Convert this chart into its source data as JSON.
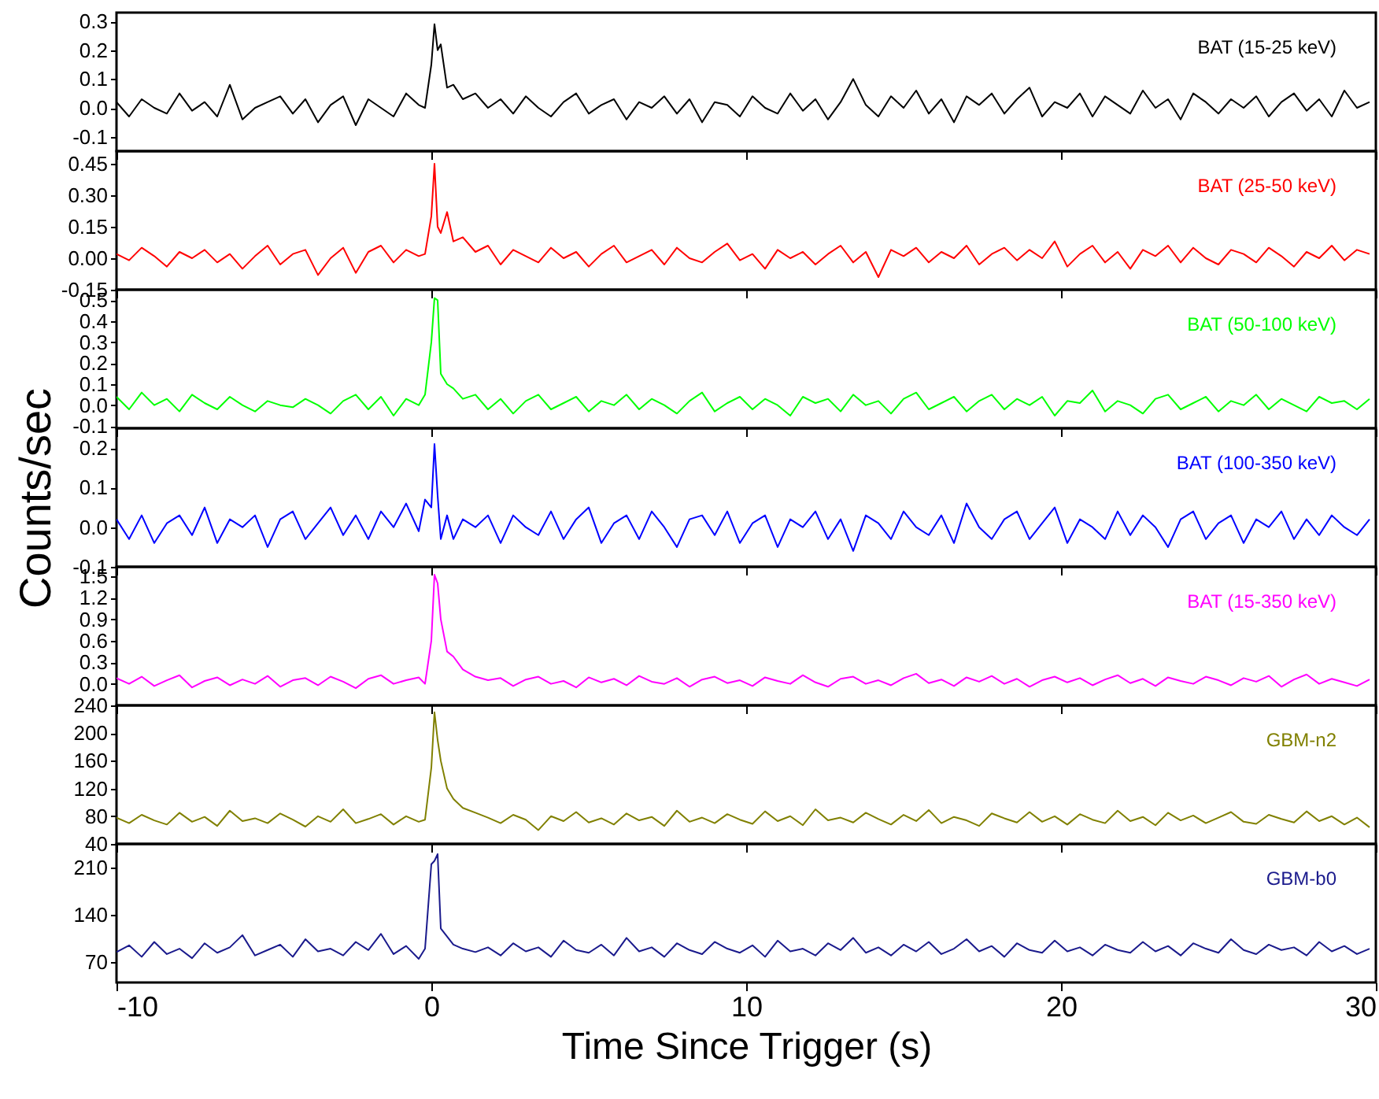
{
  "chart_data": [
    {
      "type": "line",
      "x": [
        -10,
        -9.6,
        -9.2,
        -8.8,
        -8.4,
        -8,
        -7.6,
        -7.2,
        -6.8,
        -6.4,
        -6,
        -5.6,
        -5.2,
        -4.8,
        -4.4,
        -4,
        -3.6,
        -3.2,
        -2.8,
        -2.4,
        -2,
        -1.6,
        -1.2,
        -0.8,
        -0.4,
        -0.2,
        0,
        0.1,
        0.2,
        0.3,
        0.5,
        0.7,
        1,
        1.4,
        1.8,
        2.2,
        2.6,
        3,
        3.4,
        3.8,
        4.2,
        4.6,
        5,
        5.4,
        5.8,
        6.2,
        6.6,
        7,
        7.4,
        7.8,
        8.2,
        8.6,
        9,
        9.4,
        9.8,
        10.2,
        10.6,
        11,
        11.4,
        11.8,
        12.2,
        12.6,
        13,
        13.4,
        13.8,
        14.2,
        14.6,
        15,
        15.4,
        15.8,
        16.2,
        16.6,
        17,
        17.4,
        17.8,
        18.2,
        18.6,
        19,
        19.4,
        19.8,
        20.2,
        20.6,
        21,
        21.4,
        21.8,
        22.2,
        22.6,
        23,
        23.4,
        23.8,
        24.2,
        24.6,
        25,
        25.4,
        25.8,
        26.2,
        26.6,
        27,
        27.4,
        27.8,
        28.2,
        28.6,
        29,
        29.4,
        29.8
      ],
      "series": [
        {
          "name": "BAT (15-25 keV)",
          "color": "#000000",
          "values": [
            0.02,
            -0.03,
            0.03,
            0.0,
            -0.02,
            0.05,
            -0.01,
            0.02,
            -0.03,
            0.08,
            -0.04,
            0.0,
            0.02,
            0.04,
            -0.02,
            0.03,
            -0.05,
            0.01,
            0.04,
            -0.06,
            0.03,
            0.0,
            -0.03,
            0.05,
            0.01,
            0.0,
            0.15,
            0.29,
            0.2,
            0.22,
            0.07,
            0.08,
            0.03,
            0.05,
            0.0,
            0.03,
            -0.02,
            0.04,
            0.0,
            -0.03,
            0.02,
            0.05,
            -0.02,
            0.01,
            0.03,
            -0.04,
            0.02,
            0.0,
            0.04,
            -0.02,
            0.03,
            -0.05,
            0.02,
            0.01,
            -0.03,
            0.04,
            0.0,
            -0.02,
            0.05,
            -0.01,
            0.03,
            -0.04,
            0.02,
            0.1,
            0.01,
            -0.03,
            0.04,
            0.0,
            0.06,
            -0.02,
            0.03,
            -0.05,
            0.04,
            0.01,
            0.05,
            -0.02,
            0.03,
            0.07,
            -0.03,
            0.02,
            0.0,
            0.05,
            -0.03,
            0.04,
            0.01,
            -0.02,
            0.06,
            0.0,
            0.03,
            -0.04,
            0.05,
            0.02,
            -0.02,
            0.03,
            0.0,
            0.04,
            -0.03,
            0.02,
            0.05,
            -0.01,
            0.03,
            -0.03,
            0.06,
            0.0,
            0.02
          ]
        }
      ],
      "xlim": [
        -10,
        30
      ],
      "xticks": [
        -10,
        0,
        10,
        20,
        30
      ],
      "ylim": [
        -0.15,
        0.33
      ],
      "yticks": [
        -0.1,
        {
          "value": 0,
          "label": "0.0"
        },
        0.1,
        0.2,
        0.3
      ],
      "tick_labels": "y"
    },
    {
      "type": "line",
      "x": [
        -10,
        -9.6,
        -9.2,
        -8.8,
        -8.4,
        -8,
        -7.6,
        -7.2,
        -6.8,
        -6.4,
        -6,
        -5.6,
        -5.2,
        -4.8,
        -4.4,
        -4,
        -3.6,
        -3.2,
        -2.8,
        -2.4,
        -2,
        -1.6,
        -1.2,
        -0.8,
        -0.4,
        -0.2,
        0,
        0.1,
        0.2,
        0.3,
        0.5,
        0.7,
        1,
        1.4,
        1.8,
        2.2,
        2.6,
        3,
        3.4,
        3.8,
        4.2,
        4.6,
        5,
        5.4,
        5.8,
        6.2,
        6.6,
        7,
        7.4,
        7.8,
        8.2,
        8.6,
        9,
        9.4,
        9.8,
        10.2,
        10.6,
        11,
        11.4,
        11.8,
        12.2,
        12.6,
        13,
        13.4,
        13.8,
        14.2,
        14.6,
        15,
        15.4,
        15.8,
        16.2,
        16.6,
        17,
        17.4,
        17.8,
        18.2,
        18.6,
        19,
        19.4,
        19.8,
        20.2,
        20.6,
        21,
        21.4,
        21.8,
        22.2,
        22.6,
        23,
        23.4,
        23.8,
        24.2,
        24.6,
        25,
        25.4,
        25.8,
        26.2,
        26.6,
        27,
        27.4,
        27.8,
        28.2,
        28.6,
        29,
        29.4,
        29.8
      ],
      "series": [
        {
          "name": "BAT (25-50 keV)",
          "color": "#ff0000",
          "values": [
            0.02,
            -0.01,
            0.05,
            0.01,
            -0.04,
            0.03,
            0.0,
            0.04,
            -0.02,
            0.02,
            -0.05,
            0.01,
            0.06,
            -0.03,
            0.02,
            0.04,
            -0.08,
            0.0,
            0.05,
            -0.07,
            0.03,
            0.06,
            -0.02,
            0.04,
            0.01,
            0.02,
            0.2,
            0.45,
            0.15,
            0.12,
            0.22,
            0.08,
            0.1,
            0.03,
            0.06,
            -0.03,
            0.04,
            0.01,
            -0.02,
            0.05,
            0.0,
            0.03,
            -0.04,
            0.02,
            0.06,
            -0.02,
            0.01,
            0.04,
            -0.03,
            0.05,
            0.0,
            -0.02,
            0.03,
            0.07,
            -0.01,
            0.02,
            -0.05,
            0.04,
            0.0,
            0.03,
            -0.03,
            0.02,
            0.06,
            -0.02,
            0.03,
            -0.09,
            0.04,
            0.01,
            0.05,
            -0.02,
            0.03,
            0.0,
            0.06,
            -0.03,
            0.02,
            0.05,
            -0.01,
            0.04,
            0.0,
            0.08,
            -0.04,
            0.02,
            0.06,
            -0.02,
            0.03,
            -0.05,
            0.04,
            0.01,
            0.06,
            -0.02,
            0.05,
            0.0,
            -0.03,
            0.04,
            0.02,
            -0.02,
            0.05,
            0.01,
            -0.04,
            0.03,
            0.0,
            0.06,
            -0.01,
            0.04,
            0.02
          ]
        }
      ],
      "xlim": [
        -10,
        30
      ],
      "xticks": [
        -10,
        0,
        10,
        20,
        30
      ],
      "ylim": [
        -0.15,
        0.51
      ],
      "yticks": [
        {
          "value": -0.15,
          "label": "-0.15"
        },
        {
          "value": 0,
          "label": "0.00"
        },
        0.15,
        {
          "value": 0.3,
          "label": "0.30"
        },
        0.45
      ],
      "tick_labels": "y"
    },
    {
      "type": "line",
      "x": [
        -10,
        -9.6,
        -9.2,
        -8.8,
        -8.4,
        -8,
        -7.6,
        -7.2,
        -6.8,
        -6.4,
        -6,
        -5.6,
        -5.2,
        -4.8,
        -4.4,
        -4,
        -3.6,
        -3.2,
        -2.8,
        -2.4,
        -2,
        -1.6,
        -1.2,
        -0.8,
        -0.4,
        -0.2,
        0,
        0.1,
        0.2,
        0.3,
        0.5,
        0.7,
        1,
        1.4,
        1.8,
        2.2,
        2.6,
        3,
        3.4,
        3.8,
        4.2,
        4.6,
        5,
        5.4,
        5.8,
        6.2,
        6.6,
        7,
        7.4,
        7.8,
        8.2,
        8.6,
        9,
        9.4,
        9.8,
        10.2,
        10.6,
        11,
        11.4,
        11.8,
        12.2,
        12.6,
        13,
        13.4,
        13.8,
        14.2,
        14.6,
        15,
        15.4,
        15.8,
        16.2,
        16.6,
        17,
        17.4,
        17.8,
        18.2,
        18.6,
        19,
        19.4,
        19.8,
        20.2,
        20.6,
        21,
        21.4,
        21.8,
        22.2,
        22.6,
        23,
        23.4,
        23.8,
        24.2,
        24.6,
        25,
        25.4,
        25.8,
        26.2,
        26.6,
        27,
        27.4,
        27.8,
        28.2,
        28.6,
        29,
        29.4,
        29.8
      ],
      "series": [
        {
          "name": "BAT (50-100 keV)",
          "color": "#00ff00",
          "values": [
            0.04,
            -0.02,
            0.06,
            0.0,
            0.03,
            -0.03,
            0.05,
            0.01,
            -0.02,
            0.04,
            0.0,
            -0.03,
            0.02,
            0.0,
            -0.01,
            0.03,
            0.0,
            -0.04,
            0.02,
            0.05,
            -0.02,
            0.04,
            -0.05,
            0.03,
            0.0,
            0.05,
            0.3,
            0.51,
            0.5,
            0.15,
            0.1,
            0.08,
            0.03,
            0.05,
            -0.02,
            0.03,
            -0.04,
            0.02,
            0.05,
            -0.02,
            0.01,
            0.04,
            -0.03,
            0.02,
            0.0,
            0.05,
            -0.02,
            0.03,
            0.0,
            -0.04,
            0.02,
            0.06,
            -0.03,
            0.01,
            0.04,
            -0.02,
            0.03,
            0.0,
            -0.05,
            0.04,
            0.01,
            0.03,
            -0.03,
            0.05,
            0.0,
            0.02,
            -0.04,
            0.03,
            0.06,
            -0.02,
            0.01,
            0.04,
            -0.03,
            0.02,
            0.05,
            -0.02,
            0.03,
            0.0,
            0.04,
            -0.05,
            0.02,
            0.01,
            0.07,
            -0.03,
            0.02,
            0.0,
            -0.04,
            0.03,
            0.05,
            -0.02,
            0.01,
            0.04,
            -0.03,
            0.02,
            0.0,
            0.05,
            -0.02,
            0.03,
            0.0,
            -0.03,
            0.04,
            0.01,
            0.02,
            -0.02,
            0.03
          ]
        }
      ],
      "xlim": [
        -10,
        30
      ],
      "xticks": [
        -10,
        0,
        10,
        20,
        30
      ],
      "ylim": [
        -0.11,
        0.55
      ],
      "yticks": [
        -0.1,
        {
          "value": 0,
          "label": "0.0"
        },
        0.1,
        0.2,
        0.3,
        0.4,
        0.5
      ],
      "tick_labels": "y"
    },
    {
      "type": "line",
      "ylabel": "Counts/sec",
      "x": [
        -10,
        -9.6,
        -9.2,
        -8.8,
        -8.4,
        -8,
        -7.6,
        -7.2,
        -6.8,
        -6.4,
        -6,
        -5.6,
        -5.2,
        -4.8,
        -4.4,
        -4,
        -3.6,
        -3.2,
        -2.8,
        -2.4,
        -2,
        -1.6,
        -1.2,
        -0.8,
        -0.4,
        -0.2,
        0,
        0.1,
        0.2,
        0.3,
        0.5,
        0.7,
        1,
        1.4,
        1.8,
        2.2,
        2.6,
        3,
        3.4,
        3.8,
        4.2,
        4.6,
        5,
        5.4,
        5.8,
        6.2,
        6.6,
        7,
        7.4,
        7.8,
        8.2,
        8.6,
        9,
        9.4,
        9.8,
        10.2,
        10.6,
        11,
        11.4,
        11.8,
        12.2,
        12.6,
        13,
        13.4,
        13.8,
        14.2,
        14.6,
        15,
        15.4,
        15.8,
        16.2,
        16.6,
        17,
        17.4,
        17.8,
        18.2,
        18.6,
        19,
        19.4,
        19.8,
        20.2,
        20.6,
        21,
        21.4,
        21.8,
        22.2,
        22.6,
        23,
        23.4,
        23.8,
        24.2,
        24.6,
        25,
        25.4,
        25.8,
        26.2,
        26.6,
        27,
        27.4,
        27.8,
        28.2,
        28.6,
        29,
        29.4,
        29.8
      ],
      "series": [
        {
          "name": "BAT (100-350 keV)",
          "color": "#0000ff",
          "values": [
            0.02,
            -0.03,
            0.03,
            -0.04,
            0.01,
            0.03,
            -0.02,
            0.05,
            -0.04,
            0.02,
            0.0,
            0.03,
            -0.05,
            0.02,
            0.04,
            -0.03,
            0.01,
            0.05,
            -0.02,
            0.03,
            -0.03,
            0.04,
            0.0,
            0.06,
            -0.01,
            0.07,
            0.05,
            0.21,
            0.08,
            -0.03,
            0.03,
            -0.03,
            0.02,
            0.0,
            0.03,
            -0.04,
            0.03,
            0.0,
            -0.02,
            0.04,
            -0.03,
            0.02,
            0.05,
            -0.04,
            0.01,
            0.03,
            -0.03,
            0.04,
            0.0,
            -0.05,
            0.02,
            0.03,
            -0.02,
            0.04,
            -0.04,
            0.01,
            0.03,
            -0.05,
            0.02,
            0.0,
            0.04,
            -0.03,
            0.02,
            -0.06,
            0.03,
            0.01,
            -0.03,
            0.04,
            0.0,
            -0.02,
            0.03,
            -0.04,
            0.06,
            0.0,
            -0.03,
            0.02,
            0.04,
            -0.03,
            0.01,
            0.05,
            -0.04,
            0.02,
            0.0,
            -0.03,
            0.04,
            -0.02,
            0.03,
            0.0,
            -0.05,
            0.02,
            0.04,
            -0.03,
            0.01,
            0.03,
            -0.04,
            0.02,
            0.0,
            0.04,
            -0.03,
            0.02,
            -0.02,
            0.03,
            0.0,
            -0.02,
            0.02
          ]
        }
      ],
      "xlim": [
        -10,
        30
      ],
      "xticks": [
        -10,
        0,
        10,
        20,
        30
      ],
      "ylim": [
        -0.1,
        0.25
      ],
      "yticks": [
        -0.1,
        {
          "value": 0,
          "label": "0.0"
        },
        0.1,
        0.2
      ],
      "tick_labels": "y"
    },
    {
      "type": "line",
      "x": [
        -10,
        -9.6,
        -9.2,
        -8.8,
        -8.4,
        -8,
        -7.6,
        -7.2,
        -6.8,
        -6.4,
        -6,
        -5.6,
        -5.2,
        -4.8,
        -4.4,
        -4,
        -3.6,
        -3.2,
        -2.8,
        -2.4,
        -2,
        -1.6,
        -1.2,
        -0.8,
        -0.4,
        -0.2,
        0,
        0.1,
        0.2,
        0.3,
        0.5,
        0.7,
        1,
        1.4,
        1.8,
        2.2,
        2.6,
        3,
        3.4,
        3.8,
        4.2,
        4.6,
        5,
        5.4,
        5.8,
        6.2,
        6.6,
        7,
        7.4,
        7.8,
        8.2,
        8.6,
        9,
        9.4,
        9.8,
        10.2,
        10.6,
        11,
        11.4,
        11.8,
        12.2,
        12.6,
        13,
        13.4,
        13.8,
        14.2,
        14.6,
        15,
        15.4,
        15.8,
        16.2,
        16.6,
        17,
        17.4,
        17.8,
        18.2,
        18.6,
        19,
        19.4,
        19.8,
        20.2,
        20.6,
        21,
        21.4,
        21.8,
        22.2,
        22.6,
        23,
        23.4,
        23.8,
        24.2,
        24.6,
        25,
        25.4,
        25.8,
        26.2,
        26.6,
        27,
        27.4,
        27.8,
        28.2,
        28.6,
        29,
        29.4,
        29.8
      ],
      "series": [
        {
          "name": "BAT (15-350 keV)",
          "color": "#ff00ff",
          "values": [
            0.08,
            0.0,
            0.1,
            -0.03,
            0.05,
            0.12,
            -0.05,
            0.04,
            0.09,
            -0.02,
            0.06,
            0.0,
            0.11,
            -0.04,
            0.05,
            0.08,
            -0.02,
            0.1,
            0.03,
            -0.06,
            0.07,
            0.12,
            0.0,
            0.05,
            0.09,
            0.0,
            0.6,
            1.52,
            1.4,
            0.9,
            0.45,
            0.38,
            0.2,
            0.1,
            0.05,
            0.08,
            -0.03,
            0.06,
            0.1,
            0.0,
            0.04,
            -0.05,
            0.09,
            0.02,
            0.07,
            -0.02,
            0.11,
            0.03,
            0.0,
            0.08,
            -0.04,
            0.06,
            0.1,
            0.01,
            0.05,
            -0.03,
            0.09,
            0.04,
            0.0,
            0.12,
            0.02,
            -0.04,
            0.07,
            0.1,
            0.0,
            0.05,
            -0.02,
            0.08,
            0.14,
            0.01,
            0.06,
            -0.03,
            0.09,
            0.03,
            0.11,
            0.0,
            0.07,
            -0.04,
            0.05,
            0.1,
            0.02,
            0.08,
            -0.02,
            0.06,
            0.12,
            0.01,
            0.07,
            -0.03,
            0.09,
            0.04,
            0.0,
            0.1,
            0.05,
            -0.02,
            0.08,
            0.03,
            0.11,
            -0.04,
            0.06,
            0.13,
            0.0,
            0.07,
            0.02,
            -0.03,
            0.06
          ]
        }
      ],
      "xlim": [
        -10,
        30
      ],
      "xticks": [
        -10,
        0,
        10,
        20,
        30
      ],
      "ylim": [
        -0.3,
        1.63
      ],
      "yticks": [
        {
          "value": 0,
          "label": "0.0"
        },
        0.3,
        0.6,
        0.9,
        1.2,
        1.5
      ],
      "tick_labels": "y"
    },
    {
      "type": "line",
      "x": [
        -10,
        -9.6,
        -9.2,
        -8.8,
        -8.4,
        -8,
        -7.6,
        -7.2,
        -6.8,
        -6.4,
        -6,
        -5.6,
        -5.2,
        -4.8,
        -4.4,
        -4,
        -3.6,
        -3.2,
        -2.8,
        -2.4,
        -2,
        -1.6,
        -1.2,
        -0.8,
        -0.4,
        -0.2,
        0,
        0.1,
        0.2,
        0.3,
        0.5,
        0.7,
        1,
        1.4,
        1.8,
        2.2,
        2.6,
        3,
        3.4,
        3.8,
        4.2,
        4.6,
        5,
        5.4,
        5.8,
        6.2,
        6.6,
        7,
        7.4,
        7.8,
        8.2,
        8.6,
        9,
        9.4,
        9.8,
        10.2,
        10.6,
        11,
        11.4,
        11.8,
        12.2,
        12.6,
        13,
        13.4,
        13.8,
        14.2,
        14.6,
        15,
        15.4,
        15.8,
        16.2,
        16.6,
        17,
        17.4,
        17.8,
        18.2,
        18.6,
        19,
        19.4,
        19.8,
        20.2,
        20.6,
        21,
        21.4,
        21.8,
        22.2,
        22.6,
        23,
        23.4,
        23.8,
        24.2,
        24.6,
        25,
        25.4,
        25.8,
        26.2,
        26.6,
        27,
        27.4,
        27.8,
        28.2,
        28.6,
        29,
        29.4,
        29.8
      ],
      "series": [
        {
          "name": "GBM-n2",
          "color": "#808000",
          "values": [
            78,
            70,
            82,
            74,
            68,
            85,
            72,
            79,
            66,
            88,
            73,
            77,
            70,
            84,
            75,
            65,
            80,
            72,
            90,
            70,
            76,
            83,
            68,
            80,
            72,
            75,
            150,
            230,
            190,
            160,
            120,
            105,
            92,
            85,
            78,
            70,
            82,
            75,
            60,
            80,
            73,
            86,
            71,
            77,
            68,
            84,
            74,
            79,
            66,
            88,
            72,
            78,
            70,
            83,
            75,
            69,
            87,
            73,
            80,
            67,
            90,
            74,
            78,
            71,
            85,
            76,
            68,
            82,
            73,
            89,
            70,
            79,
            74,
            66,
            84,
            77,
            71,
            86,
            72,
            80,
            68,
            83,
            75,
            70,
            88,
            73,
            79,
            67,
            85,
            74,
            81,
            70,
            78,
            86,
            72,
            69,
            82,
            76,
            71,
            87,
            73,
            80,
            68,
            78,
            64
          ]
        }
      ],
      "xlim": [
        -10,
        30
      ],
      "xticks": [
        -10,
        0,
        10,
        20,
        30
      ],
      "ylim": [
        40,
        240
      ],
      "yticks": [
        40,
        80,
        120,
        160,
        200,
        240
      ],
      "tick_labels": "y"
    },
    {
      "type": "line",
      "xlabel": "Time Since Trigger (s)",
      "x": [
        -10,
        -9.6,
        -9.2,
        -8.8,
        -8.4,
        -8,
        -7.6,
        -7.2,
        -6.8,
        -6.4,
        -6,
        -5.6,
        -5.2,
        -4.8,
        -4.4,
        -4,
        -3.6,
        -3.2,
        -2.8,
        -2.4,
        -2,
        -1.6,
        -1.2,
        -0.8,
        -0.4,
        -0.2,
        0,
        0.1,
        0.2,
        0.3,
        0.5,
        0.7,
        1,
        1.4,
        1.8,
        2.2,
        2.6,
        3,
        3.4,
        3.8,
        4.2,
        4.6,
        5,
        5.4,
        5.8,
        6.2,
        6.6,
        7,
        7.4,
        7.8,
        8.2,
        8.6,
        9,
        9.4,
        9.8,
        10.2,
        10.6,
        11,
        11.4,
        11.8,
        12.2,
        12.6,
        13,
        13.4,
        13.8,
        14.2,
        14.6,
        15,
        15.4,
        15.8,
        16.2,
        16.6,
        17,
        17.4,
        17.8,
        18.2,
        18.6,
        19,
        19.4,
        19.8,
        20.2,
        20.6,
        21,
        21.4,
        21.8,
        22.2,
        22.6,
        23,
        23.4,
        23.8,
        24.2,
        24.6,
        25,
        25.4,
        25.8,
        26.2,
        26.6,
        27,
        27.4,
        27.8,
        28.2,
        28.6,
        29,
        29.4,
        29.8
      ],
      "series": [
        {
          "name": "GBM-b0",
          "color": "#1a1a8c",
          "values": [
            85,
            95,
            78,
            100,
            82,
            90,
            76,
            98,
            84,
            92,
            110,
            80,
            88,
            96,
            78,
            104,
            86,
            90,
            80,
            100,
            88,
            112,
            82,
            94,
            75,
            90,
            215,
            220,
            230,
            120,
            108,
            96,
            90,
            85,
            92,
            80,
            98,
            86,
            92,
            78,
            102,
            88,
            84,
            96,
            80,
            106,
            86,
            92,
            78,
            98,
            88,
            82,
            100,
            90,
            84,
            95,
            78,
            102,
            86,
            90,
            80,
            98,
            88,
            106,
            84,
            92,
            80,
            96,
            86,
            100,
            82,
            90,
            104,
            86,
            94,
            78,
            98,
            88,
            84,
            102,
            86,
            92,
            80,
            96,
            88,
            84,
            100,
            86,
            94,
            80,
            98,
            90,
            84,
            104,
            88,
            82,
            96,
            88,
            92,
            80,
            100,
            86,
            94,
            82,
            90
          ]
        }
      ],
      "xlim": [
        -10,
        30
      ],
      "xticks": [
        -10,
        0,
        10,
        20,
        30
      ],
      "ylim": [
        40,
        245
      ],
      "yticks": [
        70,
        140,
        210
      ]
    }
  ]
}
